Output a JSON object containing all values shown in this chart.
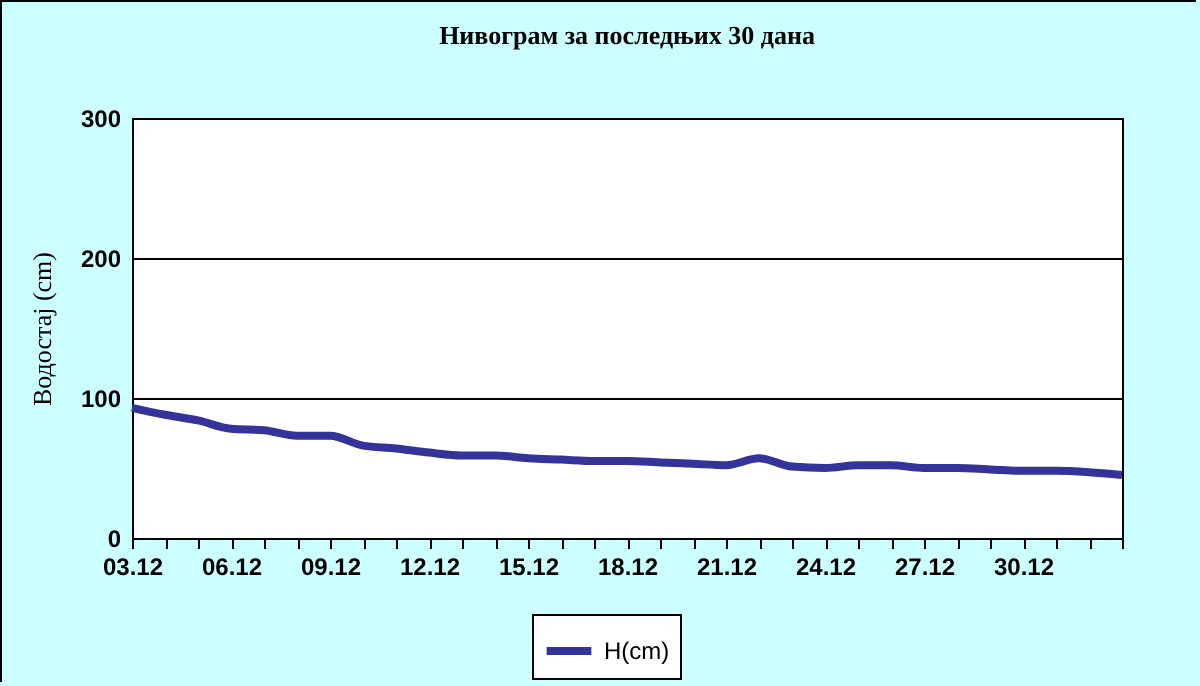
{
  "chart_data": {
    "type": "line",
    "title": "Нивограм за последњих 30 дана",
    "ylabel": "Водостај (cm)",
    "categories": [
      "03.12",
      null,
      null,
      "06.12",
      null,
      null,
      "09.12",
      null,
      null,
      "12.12",
      null,
      null,
      "15.12",
      null,
      null,
      "18.12",
      null,
      null,
      "21.12",
      null,
      null,
      "24.12",
      null,
      null,
      "27.12",
      null,
      null,
      "30.12",
      null,
      null,
      null
    ],
    "series": [
      {
        "name": "H(cm)",
        "color": "#333399",
        "values": [
          93,
          88,
          84,
          78,
          77,
          73,
          73,
          66,
          64,
          61,
          59,
          59,
          57,
          56,
          55,
          55,
          54,
          53,
          52,
          57,
          51,
          50,
          52,
          52,
          50,
          50,
          49,
          48,
          48,
          47,
          45
        ]
      }
    ],
    "ylim": [
      0,
      300
    ],
    "yticks": [
      0,
      100,
      200,
      300
    ],
    "grid": "y",
    "legend": "bottom",
    "line_style": "solid",
    "marker": "none"
  }
}
